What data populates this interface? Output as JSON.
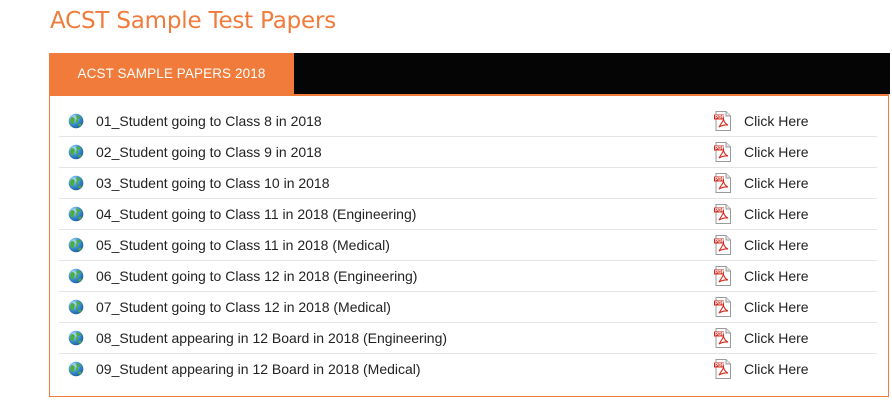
{
  "title": "ACST Sample Test Papers",
  "tabs": [
    {
      "label": "ACST SAMPLE PAPERS 2018"
    }
  ],
  "link_label": "Click Here",
  "colors": {
    "accent": "#f07b3a",
    "tab_bar": "#050505"
  },
  "rows": [
    {
      "label": "01_Student going to Class 8 in 2018",
      "link": "Click Here"
    },
    {
      "label": "02_Student going to Class 9 in 2018",
      "link": "Click Here"
    },
    {
      "label": "03_Student going to Class 10 in 2018",
      "link": "Click Here"
    },
    {
      "label": "04_Student going to Class 11 in 2018 (Engineering)",
      "link": "Click Here"
    },
    {
      "label": "05_Student going to Class 11 in 2018 (Medical)",
      "link": "Click Here"
    },
    {
      "label": "06_Student going to Class 12 in 2018 (Engineering)",
      "link": "Click Here"
    },
    {
      "label": "07_Student going to Class 12 in 2018 (Medical)",
      "link": "Click Here"
    },
    {
      "label": "08_Student appearing in 12 Board in 2018 (Engineering)",
      "link": "Click Here"
    },
    {
      "label": "09_Student appearing in 12 Board in 2018 (Medical)",
      "link": "Click Here"
    }
  ],
  "icons": {
    "row_icon": "globe-icon",
    "file_icon": "pdf-icon"
  }
}
